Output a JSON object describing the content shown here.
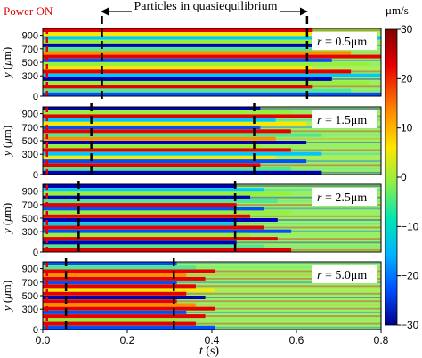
{
  "chart_data": {
    "type": "heatmap",
    "annotation_top": "Particles in quasiequilibrium",
    "power_label": "Power ON",
    "xlabel": "t (s)",
    "ylabel": "y (μm)",
    "xlim": [
      0,
      0.8
    ],
    "ylim": [
      0,
      1000
    ],
    "x_ticks": [
      "0.0",
      "0.2",
      "0.4",
      "0.6",
      "0.8"
    ],
    "y_ticks": [
      "0",
      "300",
      "500",
      "700",
      "900"
    ],
    "colorbar": {
      "unit": "μm/s",
      "min": -30,
      "max": 30,
      "ticks": [
        "30",
        "20",
        "10",
        "0",
        "−10",
        "−20",
        "−30"
      ],
      "colors": [
        "#0000b4",
        "#0050ff",
        "#00c8ff",
        "#50e696",
        "#96f03c",
        "#ffe600",
        "#ff8c00",
        "#e60000"
      ]
    },
    "arrow_span_s": [
      0.14,
      0.625
    ],
    "power_on_time_s": 0.01,
    "panels": [
      {
        "r_label": "r = 0.5μm",
        "r": "r",
        "r_value": "= 0.5μm",
        "quasi_window_s": [
          0.14,
          0.625
        ]
      },
      {
        "r_label": "r = 1.5μm",
        "r": "r",
        "r_value": "= 1.5μm",
        "quasi_window_s": [
          0.115,
          0.5
        ]
      },
      {
        "r_label": "r = 2.5μm",
        "r": "r",
        "r_value": "= 2.5μm",
        "quasi_window_s": [
          0.085,
          0.455
        ]
      },
      {
        "r_label": "r = 5.0μm",
        "r": "r",
        "r_value": "= 5.0μm",
        "quasi_window_s": [
          0.055,
          0.31
        ]
      }
    ]
  }
}
